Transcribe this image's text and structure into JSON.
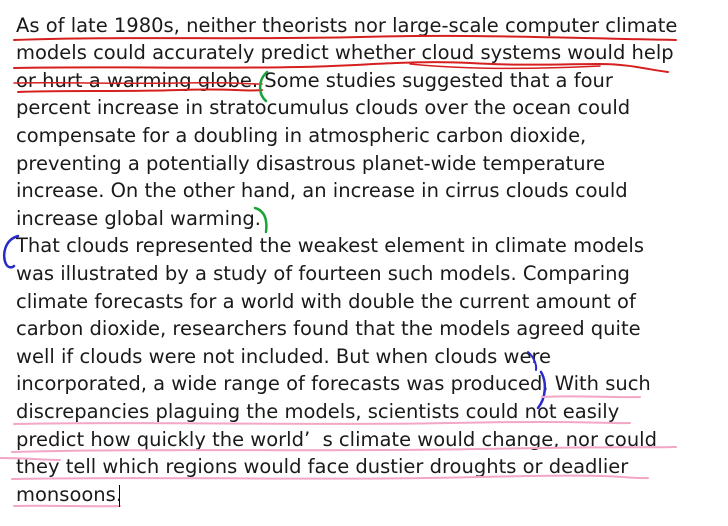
{
  "document": {
    "lines": [
      "As of late 1980s, neither theorists nor large-scale computer climate",
      "models could accurately predict whether cloud systems would help",
      "or hurt a warming globe. Some studies suggested that a four",
      "percent increase in stratocumulus clouds over the ocean could",
      "compensate for a doubling in atmospheric carbon dioxide,",
      "preventing a potentially disastrous planet-wide temperature",
      "increase. On the other hand, an increase in cirrus clouds could",
      "increase global warming.",
      "That clouds represented the weakest element in climate models",
      "was illustrated by a study of fourteen such models. Comparing",
      "climate forecasts for a world with double the current amount of",
      "carbon dioxide, researchers found that the models agreed quite",
      "well if clouds were not included. But when clouds were",
      "incorporated, a wide range of forecasts was produced. With such",
      "discrepancies plaguing the models, scientists could not easily",
      "predict how quickly the world’  s climate would change, nor could",
      "they tell which regions would face dustier droughts or deadlier",
      "monsoons."
    ]
  },
  "annotations": {
    "underline_red_color": "#d62020",
    "bracket_green_color": "#1aa33a",
    "bracket_blue_color": "#2a2acb",
    "underline_pink_color": "#f3a6c6",
    "caret_color": "#000000"
  }
}
